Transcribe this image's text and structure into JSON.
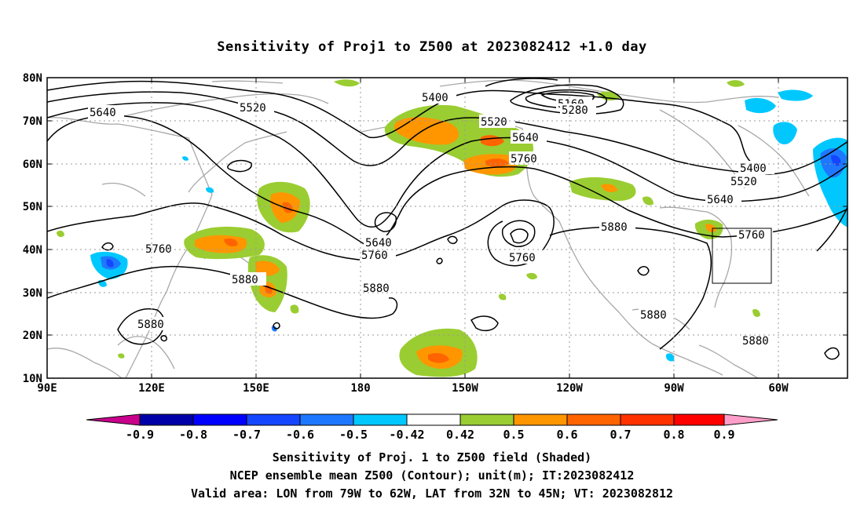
{
  "title": "Sensitivity of Proj1 to Z500 at 2023082412 +1.0 day",
  "map": {
    "lat_labels": [
      "80N",
      "70N",
      "60N",
      "50N",
      "40N",
      "30N",
      "20N",
      "10N"
    ],
    "lon_labels": [
      "90E",
      "120E",
      "150E",
      "180",
      "150W",
      "120W",
      "90W",
      "60W"
    ],
    "valid_box": {
      "lon_from_w": 79,
      "lon_to_w": 62,
      "lat_from_n": 32,
      "lat_to_n": 45
    },
    "contour_labels": [
      "5400",
      "5520",
      "5640",
      "5760",
      "5880",
      "5160",
      "5280"
    ]
  },
  "colorbar": {
    "tick_labels": [
      "-0.9",
      "-0.8",
      "-0.7",
      "-0.6",
      "-0.5",
      "-0.42",
      "0.42",
      "0.5",
      "0.6",
      "0.7",
      "0.8",
      "0.9"
    ],
    "colors": [
      "#c8008c",
      "#0000a8",
      "#0000ff",
      "#1446ff",
      "#1e78ff",
      "#00c8ff",
      "#ffffff",
      "#9acd32",
      "#ff9600",
      "#ff6400",
      "#ff3200",
      "#ff0000",
      "#ff9ec8"
    ]
  },
  "captions": {
    "line1": "Sensitivity of Proj. 1 to Z500 field (Shaded)",
    "line2": "NCEP ensemble mean Z500 (Contour); unit(m); IT:2023082412",
    "line3": "Valid area: LON from 79W to 62W, LAT from 32N to 45N; VT: 2023082812"
  }
}
